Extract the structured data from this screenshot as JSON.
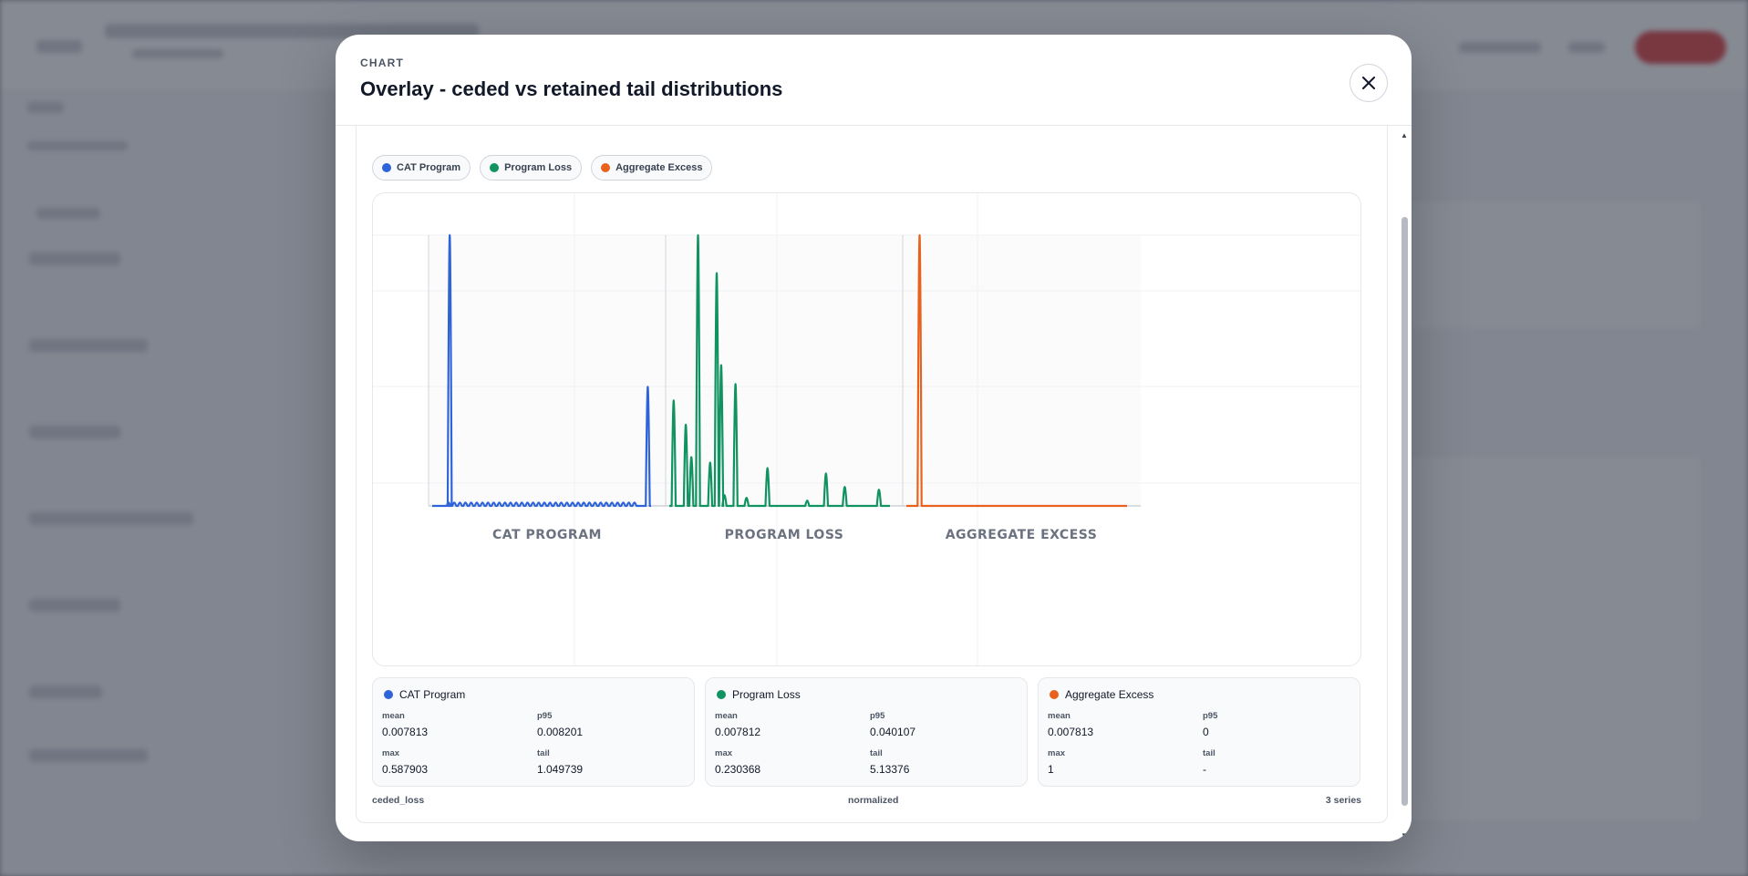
{
  "modal": {
    "kicker": "CHART",
    "title": "Overlay - ceded vs retained tail distributions",
    "close_icon": "close-icon"
  },
  "legend": [
    {
      "label": "CAT Program",
      "color": "#2f64d8"
    },
    {
      "label": "Program Loss",
      "color": "#119361"
    },
    {
      "label": "Aggregate Excess",
      "color": "#e8621d"
    }
  ],
  "chart_data": {
    "type": "line",
    "title": "",
    "xlabel": "",
    "ylabel": "",
    "grid": true,
    "legend_placement": "top-left",
    "panels": [
      {
        "name": "CAT PROGRAM",
        "color": "#2f64d8",
        "baseline_ripples": 34,
        "peaks": [
          {
            "x": 0.08,
            "y": 1.0
          },
          {
            "x": 0.985,
            "y": 0.44
          }
        ]
      },
      {
        "name": "PROGRAM LOSS",
        "color": "#119361",
        "baseline_ripples": 0,
        "peaks": [
          {
            "x": 0.02,
            "y": 0.39
          },
          {
            "x": 0.075,
            "y": 0.3
          },
          {
            "x": 0.1,
            "y": 0.18
          },
          {
            "x": 0.13,
            "y": 1.0
          },
          {
            "x": 0.185,
            "y": 0.16
          },
          {
            "x": 0.215,
            "y": 0.86
          },
          {
            "x": 0.235,
            "y": 0.52
          },
          {
            "x": 0.25,
            "y": 0.04
          },
          {
            "x": 0.3,
            "y": 0.45
          },
          {
            "x": 0.35,
            "y": 0.03
          },
          {
            "x": 0.445,
            "y": 0.14
          },
          {
            "x": 0.625,
            "y": 0.02
          },
          {
            "x": 0.71,
            "y": 0.12
          },
          {
            "x": 0.795,
            "y": 0.07
          },
          {
            "x": 0.95,
            "y": 0.06
          }
        ]
      },
      {
        "name": "AGGREGATE EXCESS",
        "color": "#e8621d",
        "baseline_ripples": 0,
        "peaks": [
          {
            "x": 0.06,
            "y": 1.0
          }
        ]
      }
    ]
  },
  "stats": [
    {
      "name": "CAT Program",
      "color": "#2f64d8",
      "mean_label": "mean",
      "mean": "0.007813",
      "p95_label": "p95",
      "p95": "0.008201",
      "max_label": "max",
      "max": "0.587903",
      "tail_label": "tail",
      "tail": "1.049739"
    },
    {
      "name": "Program Loss",
      "color": "#119361",
      "mean_label": "mean",
      "mean": "0.007812",
      "p95_label": "p95",
      "p95": "0.040107",
      "max_label": "max",
      "max": "0.230368",
      "tail_label": "tail",
      "tail": "5.13376"
    },
    {
      "name": "Aggregate Excess",
      "color": "#e8621d",
      "mean_label": "mean",
      "mean": "0.007813",
      "p95_label": "p95",
      "p95": "0",
      "max_label": "max",
      "max": "1",
      "tail_label": "tail",
      "tail": "-"
    }
  ],
  "footer": {
    "left": "ceded_loss",
    "mid": "normalized",
    "right": "3 series"
  }
}
